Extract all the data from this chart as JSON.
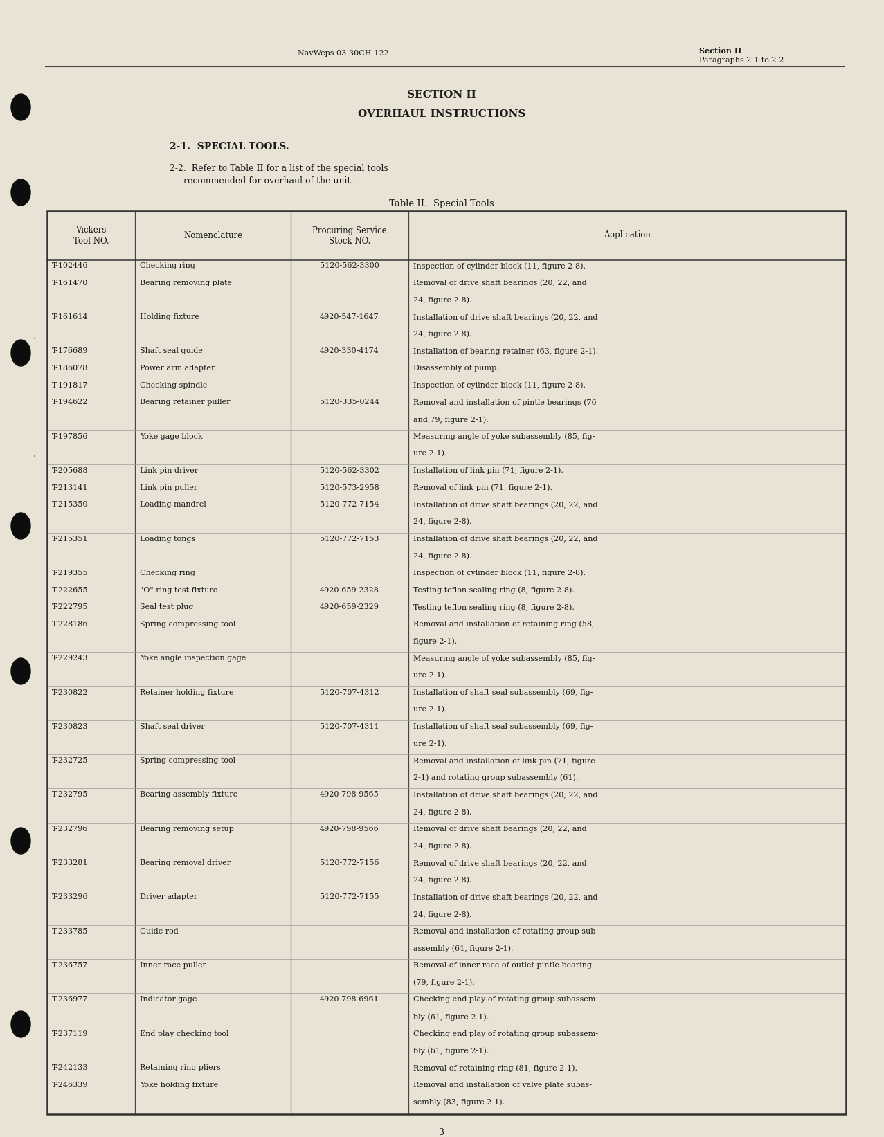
{
  "bg_color": "#e8e3d5",
  "text_color": "#1a1a1a",
  "header_left": "NavWeps 03-30CH-122",
  "header_right_line1": "Section II",
  "header_right_line2": "Paragraphs 2-1 to 2-2",
  "section_title": "SECTION II",
  "section_subtitle": "OVERHAUL INSTRUCTIONS",
  "para_heading": "2-1.  SPECIAL TOOLS.",
  "para_body_line1": "2-2.  Refer to Table II for a list of the special tools",
  "para_body_line2": "recommended for overhaul of the unit.",
  "table_title": "Table II.  Special Tools",
  "col_headers": [
    "Vickers\nTool NO.",
    "Nomenclature",
    "Procuring Service\nStock NO.",
    "Application"
  ],
  "table_rows": [
    [
      "T-102446\nT-161470",
      "Checking ring\nBearing removing plate",
      "5120-562-3300",
      "Inspection of cylinder block (11, figure 2-8).\nRemoval of drive shaft bearings (20, 22, and\n24, figure 2-8)."
    ],
    [
      "T-161614",
      "Holding fixture",
      "4920-547-1647",
      "Installation of drive shaft bearings (20, 22, and\n24, figure 2-8)."
    ],
    [
      "T-176689\nT-186078\nT-191817\nT-194622",
      "Shaft seal guide\nPower arm adapter\nChecking spindle\nBearing retainer puller",
      "4920-330-4174\n\n\n5120-335-0244",
      "Installation of bearing retainer (63, figure 2-1).\nDisassembly of pump.\nInspection of cylinder block (11, figure 2-8).\nRemoval and installation of pintle bearings (76\nand 79, figure 2-1)."
    ],
    [
      "T-197856",
      "Yoke gage block",
      "",
      "Measuring angle of yoke subassembly (85, fig-\nure 2-1)."
    ],
    [
      "T-205688\nT-213141\nT-215350",
      "Link pin driver\nLink pin puller\nLoading mandrel",
      "5120-562-3302\n5120-573-2958\n5120-772-7154",
      "Installation of link pin (71, figure 2-1).\nRemoval of link pin (71, figure 2-1).\nInstallation of drive shaft bearings (20, 22, and\n24, figure 2-8)."
    ],
    [
      "T-215351",
      "Loading tongs",
      "5120-772-7153",
      "Installation of drive shaft bearings (20, 22, and\n24, figure 2-8)."
    ],
    [
      "T-219355\nT-222655\nT-222795\nT-228186",
      "Checking ring\n\"O\" ring test fixture\nSeal test plug\nSpring compressing tool",
      "\n4920-659-2328\n4920-659-2329\n",
      "Inspection of cylinder block (11, figure 2-8).\nTesting teflon sealing ring (8, figure 2-8).\nTesting teflon sealing ring (8, figure 2-8).\nRemoval and installation of retaining ring (58,\nfigure 2-1)."
    ],
    [
      "T-229243",
      "Yoke angle inspection gage",
      "",
      "Measuring angle of yoke subassembly (85, fig-\nure 2-1)."
    ],
    [
      "T-230822",
      "Retainer holding fixture",
      "5120-707-4312",
      "Installation of shaft seal subassembly (69, fig-\nure 2-1)."
    ],
    [
      "T-230823",
      "Shaft seal driver",
      "5120-707-4311",
      "Installation of shaft seal subassembly (69, fig-\nure 2-1)."
    ],
    [
      "T-232725",
      "Spring compressing tool",
      "",
      "Removal and installation of link pin (71, figure\n2-1) and rotating group subassembly (61)."
    ],
    [
      "T-232795",
      "Bearing assembly fixture",
      "4920-798-9565",
      "Installation of drive shaft bearings (20, 22, and\n24, figure 2-8)."
    ],
    [
      "T-232796",
      "Bearing removing setup",
      "4920-798-9566",
      "Removal of drive shaft bearings (20, 22, and\n24, figure 2-8)."
    ],
    [
      "T-233281",
      "Bearing removal driver",
      "5120-772-7156",
      "Removal of drive shaft bearings (20, 22, and\n24, figure 2-8)."
    ],
    [
      "T-233296",
      "Driver adapter",
      "5120-772-7155",
      "Installation of drive shaft bearings (20, 22, and\n24, figure 2-8)."
    ],
    [
      "T-233785",
      "Guide rod",
      "",
      "Removal and installation of rotating group sub-\nassembly (61, figure 2-1)."
    ],
    [
      "T-236757",
      "Inner race puller",
      "",
      "Removal of inner race of outlet pintle bearing\n(79, figure 2-1)."
    ],
    [
      "T-236977",
      "Indicator gage",
      "4920-798-6961",
      "Checking end play of rotating group subassem-\nbly (61, figure 2-1)."
    ],
    [
      "T-237119",
      "End play checking tool",
      "",
      "Checking end play of rotating group subassem-\nbly (61, figure 2-1)."
    ],
    [
      "T-242133\nT-246339",
      "Retaining ring pliers\nYoke holding fixture",
      "",
      "Removal of retaining ring (81, figure 2-1).\nRemoval and installation of valve plate subas-\nsembly (83, figure 2-1)."
    ]
  ],
  "page_number": "3",
  "bullet_color": "#0d0d0d"
}
